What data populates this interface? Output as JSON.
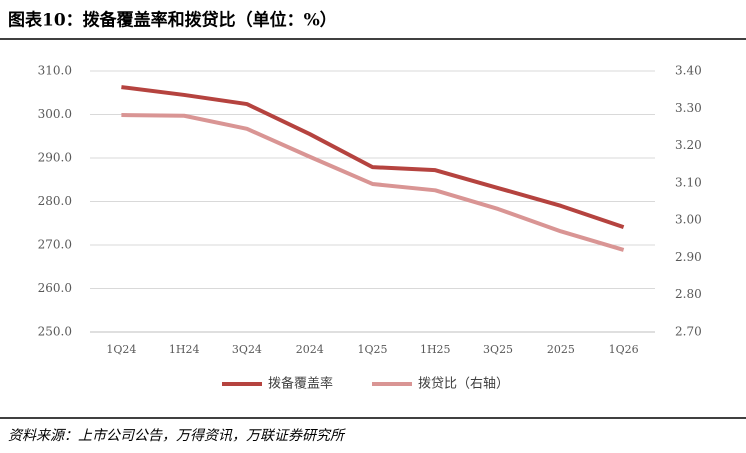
{
  "title": "图表10：拨备覆盖率和拨贷比（单位：%）",
  "source": "资料来源：上市公司公告，万得资讯，万联证券研究所",
  "chart_data": {
    "type": "line",
    "categories": [
      "1Q24",
      "1H24",
      "3Q24",
      "2024",
      "1Q25",
      "1H25",
      "3Q25",
      "2025",
      "1Q26"
    ],
    "series": [
      {
        "name": "拨备覆盖率",
        "color": "#b5433f",
        "values": [
          306.3,
          304.5,
          302.4,
          295.5,
          287.9,
          287.2,
          283.1,
          279.0,
          274.1
        ]
      },
      {
        "name": "拨贷比（右轴）",
        "color": "#d99594",
        "axis": "y2",
        "values": [
          3.282,
          3.28,
          3.245,
          3.17,
          3.097,
          3.08,
          3.03,
          2.97,
          2.92
        ]
      }
    ],
    "ylim": [
      250,
      310
    ],
    "yticks": [
      {
        "value": 250,
        "label": "250.0"
      },
      {
        "value": 260,
        "label": "260.0"
      },
      {
        "value": 270,
        "label": "270.0"
      },
      {
        "value": 280,
        "label": "280.0"
      },
      {
        "value": 290,
        "label": "290.0"
      },
      {
        "value": 300,
        "label": "300.0"
      },
      {
        "value": 310,
        "label": "310.0"
      }
    ],
    "y2lim": [
      2.7,
      3.4
    ],
    "y2ticks": [
      {
        "value": 2.7,
        "label": "2.70"
      },
      {
        "value": 2.8,
        "label": "2.80"
      },
      {
        "value": 2.9,
        "label": "2.90"
      },
      {
        "value": 3.0,
        "label": "3.00"
      },
      {
        "value": 3.1,
        "label": "3.10"
      },
      {
        "value": 3.2,
        "label": "3.20"
      },
      {
        "value": 3.3,
        "label": "3.30"
      },
      {
        "value": 3.4,
        "label": "3.40"
      }
    ],
    "grid": true,
    "legend": "bottom"
  }
}
